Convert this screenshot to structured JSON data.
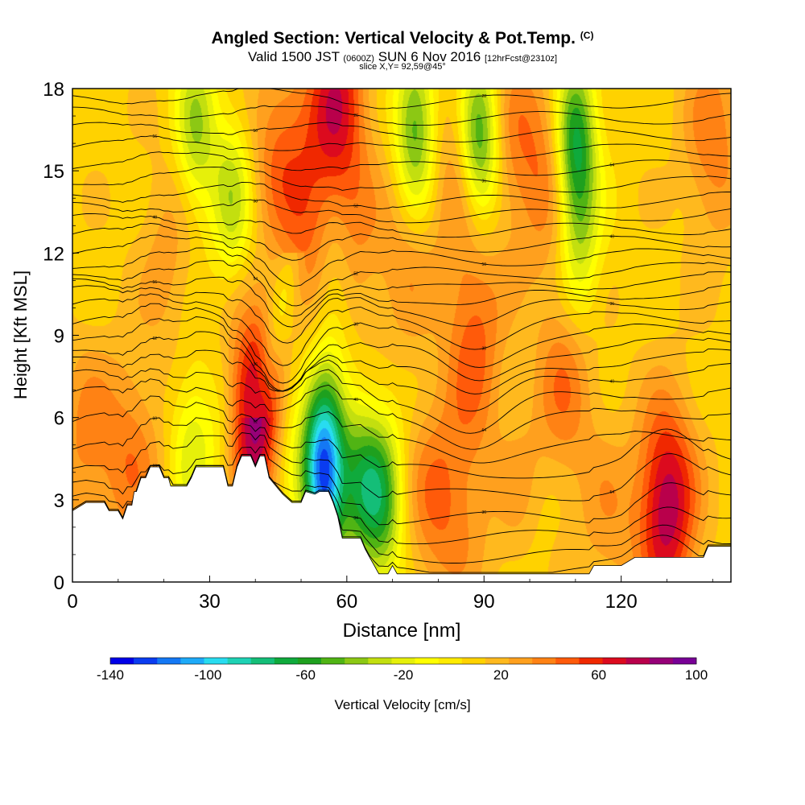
{
  "header": {
    "title": "Angled Section: Vertical Velocity & Pot.Temp.",
    "copyright": "(C)",
    "valid_prefix": "Valid 1500 JST",
    "valid_utc": "(0600Z)",
    "valid_date": "SUN 6 Nov 2016",
    "forecast": "[12hrFcst@2310z]",
    "slice": "slice X,Y= 92,59@45°"
  },
  "chart_data": {
    "type": "heatmap",
    "title": "Angled Section: Vertical Velocity & Pot.Temp.",
    "xlabel": "Distance [nm]",
    "ylabel": "Height [Kft MSL]",
    "xlim": [
      0,
      144
    ],
    "ylim": [
      0,
      18
    ],
    "x_ticks": [
      0,
      30,
      60,
      90,
      120
    ],
    "y_ticks": [
      0,
      3,
      6,
      9,
      12,
      15,
      18
    ],
    "colorbar": {
      "label": "Vertical Velocity [cm/s]",
      "range": [
        -140,
        100
      ],
      "tick_labels": [
        -140,
        -100,
        -60,
        -20,
        20,
        60,
        100
      ],
      "colors": [
        "#0000e8",
        "#0a3cf0",
        "#1478f4",
        "#1eaaf8",
        "#28dcf0",
        "#1ed2b4",
        "#14be78",
        "#0faa3c",
        "#1ea01e",
        "#50b414",
        "#8cc814",
        "#c3df0f",
        "#e6f00a",
        "#ffff00",
        "#ffeb00",
        "#ffd200",
        "#ffb91e",
        "#ffa01e",
        "#ff8214",
        "#ff5a0a",
        "#f02800",
        "#dc0a1e",
        "#b9004b",
        "#960078",
        "#780096"
      ]
    },
    "terrain_kft": [
      [
        0,
        2.6
      ],
      [
        3,
        2.9
      ],
      [
        7,
        2.9
      ],
      [
        8,
        2.6
      ],
      [
        10,
        2.6
      ],
      [
        11,
        2.3
      ],
      [
        12,
        2.8
      ],
      [
        13,
        2.8
      ],
      [
        13.5,
        3.3
      ],
      [
        14,
        3.3
      ],
      [
        15,
        3.8
      ],
      [
        16,
        3.8
      ],
      [
        17,
        4.2
      ],
      [
        19,
        4.2
      ],
      [
        20,
        3.8
      ],
      [
        21,
        3.8
      ],
      [
        21.5,
        3.5
      ],
      [
        25,
        3.5
      ],
      [
        26,
        3.8
      ],
      [
        27,
        4.2
      ],
      [
        33,
        4.2
      ],
      [
        34,
        3.5
      ],
      [
        35,
        3.5
      ],
      [
        36,
        4.2
      ],
      [
        37,
        4.6
      ],
      [
        39,
        4.6
      ],
      [
        40,
        4.2
      ],
      [
        41,
        4.6
      ],
      [
        42,
        4.6
      ],
      [
        43,
        3.8
      ],
      [
        45,
        3.4
      ],
      [
        46,
        3.2
      ],
      [
        48,
        2.9
      ],
      [
        50,
        2.9
      ],
      [
        51,
        3.3
      ],
      [
        53,
        3.2
      ],
      [
        54,
        3.3
      ],
      [
        56,
        3.3
      ],
      [
        57,
        2.9
      ],
      [
        58,
        2.4
      ],
      [
        59,
        1.6
      ],
      [
        63,
        1.6
      ],
      [
        64,
        1.2
      ],
      [
        65,
        0.9
      ],
      [
        66,
        0.6
      ],
      [
        67,
        0.3
      ],
      [
        69,
        0.3
      ],
      [
        70,
        0.6
      ],
      [
        71,
        0.3
      ],
      [
        113,
        0.3
      ],
      [
        114,
        0.6
      ],
      [
        120,
        0.6
      ],
      [
        123,
        0.9
      ],
      [
        138,
        0.9
      ],
      [
        139,
        1.3
      ],
      [
        144,
        1.3
      ]
    ],
    "updrafts": [
      {
        "x": 40,
        "y": 6.0,
        "w": 80
      },
      {
        "x": 58,
        "y": 17.6,
        "w": 55
      },
      {
        "x": 130,
        "y": 2.8,
        "w": 70
      },
      {
        "x": 45,
        "y": 16,
        "w": 30
      },
      {
        "x": 13,
        "y": 4.5,
        "w": 28
      },
      {
        "x": 3,
        "y": 5.0,
        "w": 25
      },
      {
        "x": 52,
        "y": 13,
        "w": 32
      },
      {
        "x": 61,
        "y": 12,
        "w": 22
      },
      {
        "x": 73,
        "y": 12,
        "w": 22
      },
      {
        "x": 88,
        "y": 9,
        "w": 35
      },
      {
        "x": 85,
        "y": 15,
        "w": 28
      },
      {
        "x": 96,
        "y": 16,
        "w": 24
      },
      {
        "x": 104,
        "y": 15,
        "w": 28
      },
      {
        "x": 108,
        "y": 7.5,
        "w": 30
      },
      {
        "x": 140,
        "y": 16,
        "w": 30
      },
      {
        "x": 21,
        "y": 12,
        "w": 18
      },
      {
        "x": 79,
        "y": 3,
        "w": 28
      },
      {
        "x": 86,
        "y": 3,
        "w": 18
      },
      {
        "x": 100,
        "y": 3,
        "w": 20
      },
      {
        "x": 117,
        "y": 2,
        "w": 18
      }
    ],
    "downdrafts": [
      {
        "x": 55,
        "y": 4.0,
        "w": -140
      },
      {
        "x": 27,
        "y": 16.5,
        "w": -45
      },
      {
        "x": 35,
        "y": 14,
        "w": -40
      },
      {
        "x": 47,
        "y": 5.5,
        "w": -25
      },
      {
        "x": 63,
        "y": 3.5,
        "w": -55
      },
      {
        "x": 68,
        "y": 3.0,
        "w": -60
      },
      {
        "x": 75,
        "y": 16.5,
        "w": -65
      },
      {
        "x": 89,
        "y": 16,
        "w": -80
      },
      {
        "x": 110,
        "y": 16,
        "w": -80
      },
      {
        "x": 111,
        "y": 12,
        "w": -35
      },
      {
        "x": 57,
        "y": 11,
        "w": -30
      },
      {
        "x": 26,
        "y": 5,
        "w": -30
      },
      {
        "x": 33,
        "y": 5,
        "w": -20
      },
      {
        "x": 102,
        "y": 2,
        "w": -15
      }
    ],
    "isentrope_levels_kft": [
      1.0,
      1.6,
      2.3,
      3.0,
      3.8,
      4.6,
      5.5,
      6.4,
      7.1,
      7.8,
      8.3,
      8.8,
      9.3,
      9.8,
      10.3,
      10.7,
      11.1,
      11.5,
      12.0,
      12.5,
      13.0,
      13.5,
      14.0,
      14.6,
      15.2,
      15.8,
      16.4,
      17.0,
      17.6
    ],
    "contour_labels": [
      "26",
      "50",
      "34",
      "36",
      "54",
      "60",
      "52",
      "40",
      "64",
      "40",
      "62",
      "36",
      "36",
      "38",
      "36",
      "56",
      "54",
      "52",
      "50",
      "40",
      "48",
      "38",
      "52",
      "36",
      "54",
      "56",
      "50",
      "26",
      "28",
      "34",
      "30",
      "28",
      "26",
      "24",
      "28"
    ]
  },
  "colorbar_tick_text": [
    "-140",
    "-100",
    "-60",
    "-20",
    "20",
    "60",
    "100"
  ],
  "colorbar_label_text": "Vertical Velocity [cm/s]",
  "axis_text": {
    "xlabel": "Distance [nm]",
    "ylabel": "Height [Kft MSL]",
    "xticks": [
      "0",
      "30",
      "60",
      "90",
      "120"
    ],
    "yticks": [
      "0",
      "3",
      "6",
      "9",
      "12",
      "15",
      "18"
    ]
  }
}
